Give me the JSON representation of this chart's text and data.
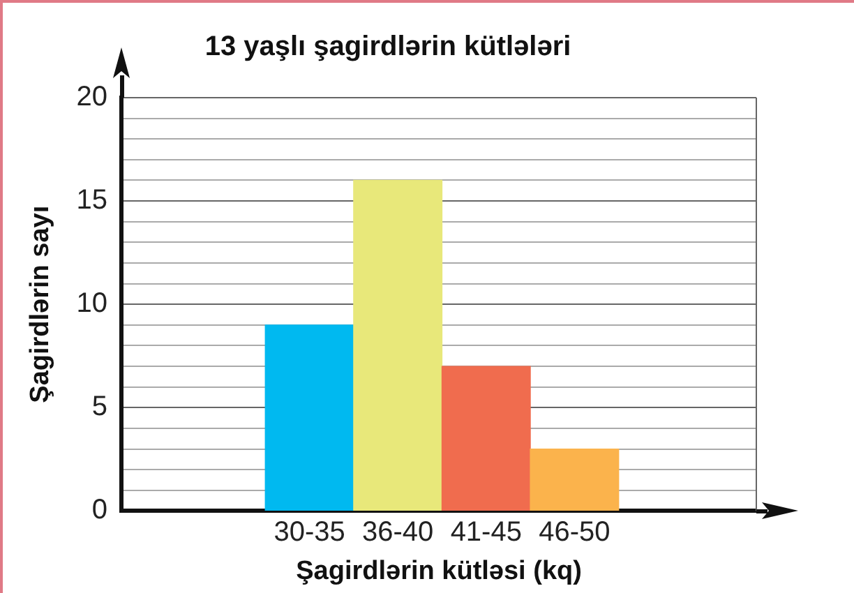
{
  "chart_data": {
    "type": "bar",
    "title": "13 yaşlı şagirdlərin kütlələri",
    "xlabel": "Şagirdlərin kütləsi (kq)",
    "ylabel": "Şagirdlərin sayı",
    "categories": [
      "30-35",
      "36-40",
      "41-45",
      "46-50"
    ],
    "values": [
      9,
      16,
      7,
      3
    ],
    "colors": [
      "#00b9f0",
      "#e8e87a",
      "#f06c4e",
      "#fbb34c"
    ],
    "ylim": [
      0,
      20
    ],
    "yticks": [
      0,
      {
        "value": 1,
        "label": null
      },
      {
        "value": 2,
        "label": null
      },
      {
        "value": 3,
        "label": null
      },
      {
        "value": 4,
        "label": null
      },
      5,
      {
        "value": 6,
        "label": null
      },
      {
        "value": 7,
        "label": null
      },
      {
        "value": 8,
        "label": null
      },
      {
        "value": 9,
        "label": null
      },
      10,
      {
        "value": 11,
        "label": null
      },
      {
        "value": 12,
        "label": null
      },
      {
        "value": 13,
        "label": null
      },
      {
        "value": 14,
        "label": null
      },
      15,
      {
        "value": 16,
        "label": null
      },
      {
        "value": 17,
        "label": null
      },
      {
        "value": 18,
        "label": null
      },
      {
        "value": 19,
        "label": null
      },
      20
    ],
    "grid": "y",
    "legend": false
  }
}
